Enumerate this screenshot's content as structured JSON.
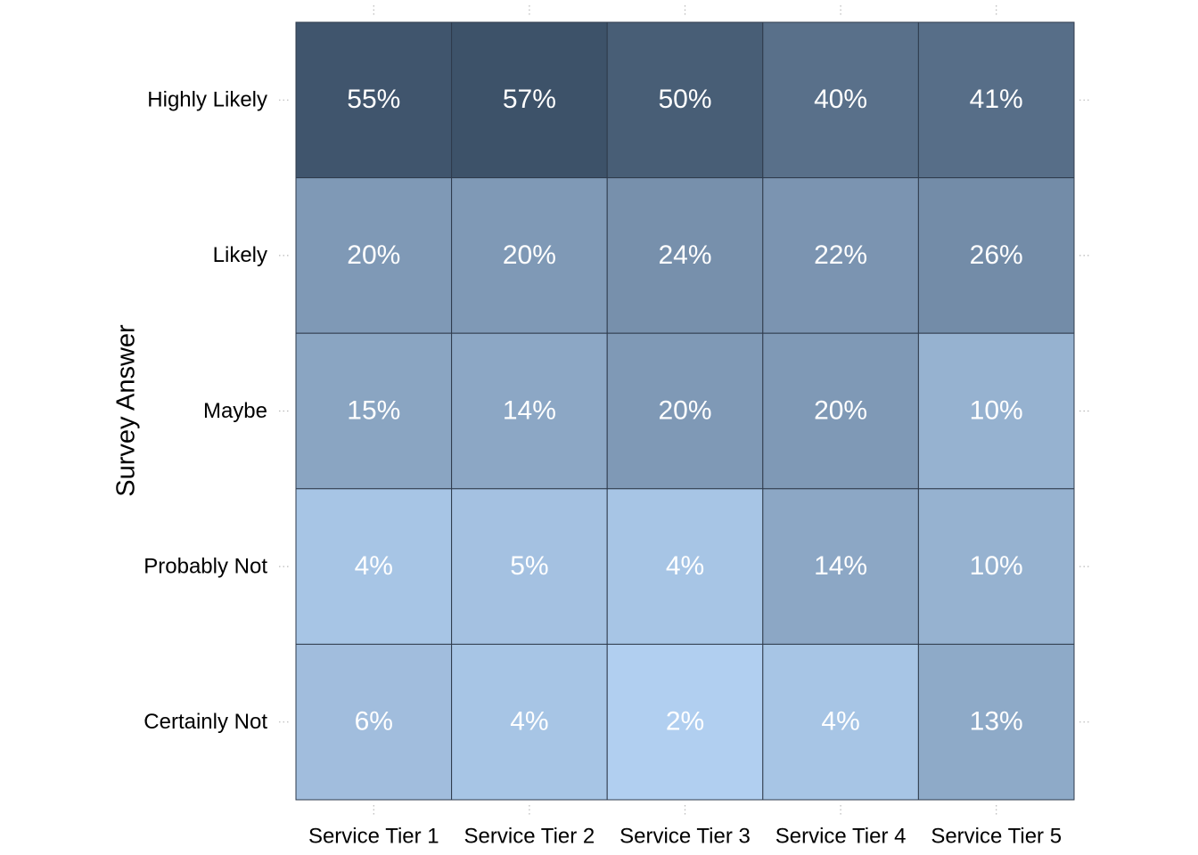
{
  "chart_data": {
    "type": "heatmap",
    "title": "",
    "xlabel": "",
    "ylabel": "Survey Answer",
    "x_categories": [
      "Service Tier 1",
      "Service Tier 2",
      "Service Tier 3",
      "Service Tier 4",
      "Service Tier 5"
    ],
    "y_categories": [
      "Highly Likely",
      "Likely",
      "Maybe",
      "Probably Not",
      "Certainly Not"
    ],
    "values": [
      [
        55,
        57,
        50,
        40,
        41
      ],
      [
        20,
        20,
        24,
        22,
        26
      ],
      [
        15,
        14,
        20,
        20,
        10
      ],
      [
        4,
        5,
        4,
        14,
        10
      ],
      [
        6,
        4,
        2,
        4,
        13
      ]
    ],
    "value_suffix": "%",
    "color_low": "#b1cff0",
    "color_high": "#3d5269",
    "grid": false,
    "legend": "none"
  }
}
